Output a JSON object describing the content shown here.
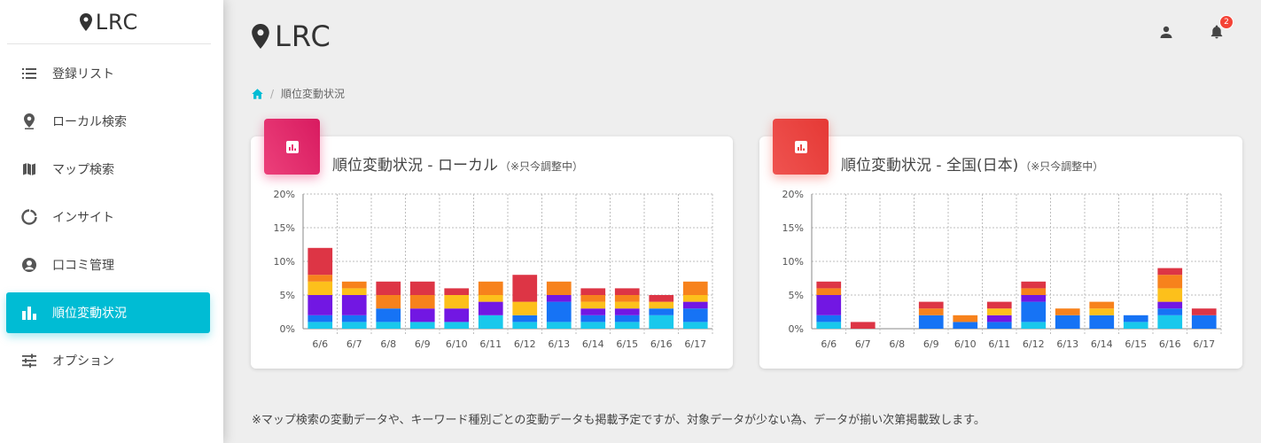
{
  "app": {
    "title": "LRC"
  },
  "sidebar": {
    "items": [
      {
        "label": "登録リスト",
        "icon": "list-icon",
        "active": false
      },
      {
        "label": "ローカル検索",
        "icon": "pin-icon",
        "active": false
      },
      {
        "label": "マップ検索",
        "icon": "map-icon",
        "active": false
      },
      {
        "label": "インサイト",
        "icon": "donut-icon",
        "active": false
      },
      {
        "label": "口コミ管理",
        "icon": "account-circle-icon",
        "active": false
      },
      {
        "label": "順位変動状況",
        "icon": "bar-chart-icon",
        "active": true
      },
      {
        "label": "オプション",
        "icon": "sliders-icon",
        "active": false
      }
    ]
  },
  "header": {
    "notification_count": "2"
  },
  "breadcrumb": {
    "current": "順位変動状況"
  },
  "colors": {
    "accent": "#00bcd4",
    "segments": [
      "#19c8ec",
      "#1673f5",
      "#7217e3",
      "#fdc01b",
      "#f7821c",
      "#dd3545"
    ],
    "card_icon_local": [
      "#ec407a",
      "#d81b60"
    ],
    "card_icon_national": [
      "#ef5350",
      "#e53935"
    ]
  },
  "cards": [
    {
      "title": "順位変動状況 - ローカル",
      "note": "（※只今調整中）"
    },
    {
      "title": "順位変動状況 - 全国(日本)",
      "note": "（※只今調整中）"
    }
  ],
  "chart_data": [
    {
      "type": "bar",
      "stacked": true,
      "categories": [
        "6/6",
        "6/7",
        "6/8",
        "6/9",
        "6/10",
        "6/11",
        "6/12",
        "6/13",
        "6/14",
        "6/15",
        "6/16",
        "6/17"
      ],
      "ylim": [
        0,
        20
      ],
      "yticks": [
        "0%",
        "5%",
        "10%",
        "15%",
        "20%"
      ],
      "grid": true,
      "series": [
        {
          "values": [
            1,
            1,
            1,
            1,
            1,
            2,
            1,
            1,
            1,
            1,
            2,
            1
          ]
        },
        {
          "values": [
            1,
            1,
            2,
            0,
            0,
            0,
            1,
            3,
            1,
            1,
            1,
            2
          ]
        },
        {
          "values": [
            3,
            3,
            0,
            2,
            2,
            2,
            0,
            1,
            1,
            1,
            0,
            1
          ]
        },
        {
          "values": [
            2,
            1,
            0,
            0,
            2,
            1,
            2,
            0,
            1,
            1,
            1,
            1
          ]
        },
        {
          "values": [
            1,
            1,
            2,
            2,
            0,
            2,
            0,
            2,
            1,
            1,
            0,
            2
          ]
        },
        {
          "values": [
            4,
            0,
            2,
            2,
            1,
            0,
            4,
            0,
            1,
            1,
            1,
            0
          ]
        }
      ]
    },
    {
      "type": "bar",
      "stacked": true,
      "categories": [
        "6/6",
        "6/7",
        "6/8",
        "6/9",
        "6/10",
        "6/11",
        "6/12",
        "6/13",
        "6/14",
        "6/15",
        "6/16",
        "6/17"
      ],
      "ylim": [
        0,
        20
      ],
      "yticks": [
        "0%",
        "5%",
        "10%",
        "15%",
        "20%"
      ],
      "grid": true,
      "series": [
        {
          "values": [
            1,
            0,
            0,
            0,
            0,
            0,
            1,
            0,
            0,
            1,
            2,
            0
          ]
        },
        {
          "values": [
            1,
            0,
            0,
            2,
            1,
            1,
            3,
            2,
            2,
            1,
            1,
            2
          ]
        },
        {
          "values": [
            3,
            0,
            0,
            0,
            0,
            1,
            1,
            0,
            0,
            0,
            1,
            0
          ]
        },
        {
          "values": [
            0,
            0,
            0,
            0,
            0,
            1,
            0,
            0,
            1,
            0,
            2,
            0
          ]
        },
        {
          "values": [
            1,
            0,
            0,
            1,
            1,
            0,
            1,
            1,
            1,
            0,
            2,
            0
          ]
        },
        {
          "values": [
            1,
            1,
            0,
            1,
            0,
            1,
            1,
            0,
            0,
            0,
            1,
            1
          ]
        }
      ]
    }
  ],
  "footnote": "※マップ検索の変動データや、キーワード種別ごとの変動データも掲載予定ですが、対象データが少ない為、データが揃い次第掲載致します。"
}
